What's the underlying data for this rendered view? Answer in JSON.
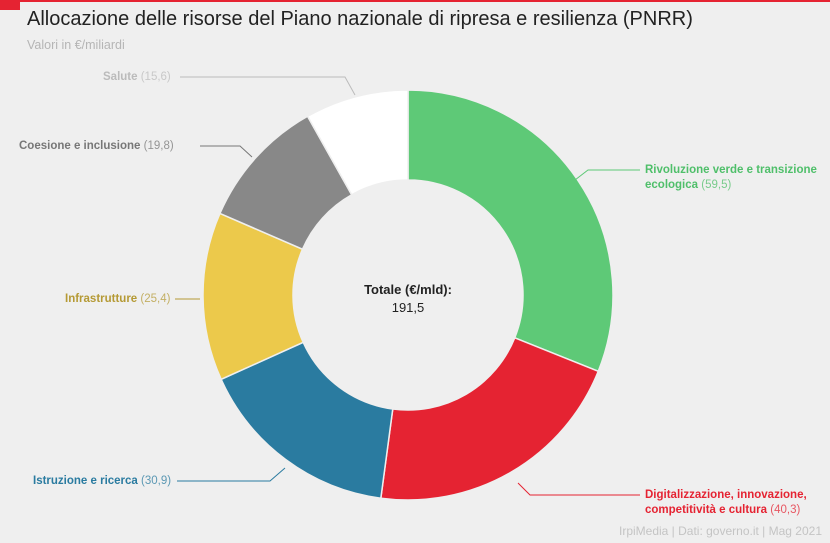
{
  "title": "Allocazione delle risorse del Piano nazionale di ripresa e resilienza (PNRR)",
  "subtitle": "Valori in €/miliardi",
  "footer": "IrpiMedia | Dati: governo.it | Mag 2021",
  "center": {
    "label": "Totale (€/mld):",
    "value": "191,5"
  },
  "chart_data": {
    "type": "pie",
    "donut": true,
    "title": "Allocazione delle risorse del Piano nazionale di ripresa e resilienza (PNRR)",
    "total": 191.5,
    "slices": [
      {
        "name": "Rivoluzione verde e transizione ecologica",
        "value": 59.5,
        "value_label": "(59,5)",
        "color": "#5ec977",
        "label_color": "#4fbf6a"
      },
      {
        "name": "Digitalizzazione, innovazione, competitività e cultura",
        "value": 40.3,
        "value_label": "(40,3)",
        "color": "#e52332",
        "label_color": "#e52332"
      },
      {
        "name": "Istruzione e ricerca",
        "value": 30.9,
        "value_label": "(30,9)",
        "color": "#2a7ba0",
        "label_color": "#2a7ba0"
      },
      {
        "name": "Infrastrutture",
        "value": 25.4,
        "value_label": "(25,4)",
        "color": "#ecc94b",
        "label_color": "#b59a35"
      },
      {
        "name": "Coesione e inclusione",
        "value": 19.8,
        "value_label": "(19,8)",
        "color": "#888888",
        "label_color": "#777777"
      },
      {
        "name": "Salute",
        "value": 15.6,
        "value_label": "(15,6)",
        "color": "#ffffff",
        "label_color": "#bbbbbb"
      }
    ]
  }
}
